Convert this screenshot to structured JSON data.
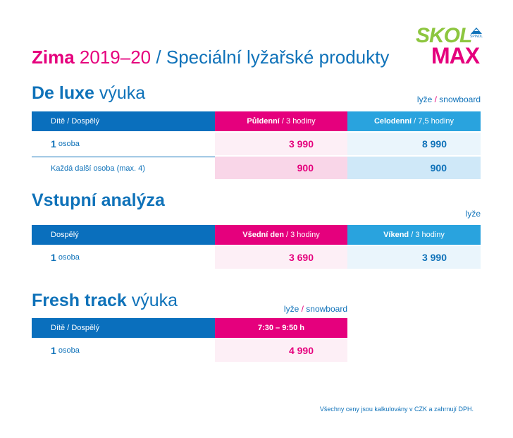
{
  "header": {
    "title_bold": "Zima",
    "title_year": "2019–20",
    "separator": "/",
    "title_rest": "Speciální lyžařské produkty"
  },
  "logo": {
    "top": "SKOL",
    "bottom": "MAX",
    "brand": "ŠPINDL"
  },
  "sections": [
    {
      "title_bold": "De luxe",
      "title_rest": "výuka",
      "sports": [
        "lyže",
        "snowboard"
      ],
      "sports_separator": "/",
      "table": {
        "header": [
          {
            "text": "Dítě / Dospělý"
          },
          {
            "bold": "Půldenní",
            "rest": "/ 3 hodiny"
          },
          {
            "bold": "Celodenní",
            "rest": "/ 7,5 hodiny"
          }
        ],
        "rows": [
          [
            {
              "bold": "1",
              "rest": "osoba"
            },
            {
              "text": "3 990"
            },
            {
              "text": "8 990"
            }
          ],
          [
            {
              "rest": "Každá další osoba (max. 4)"
            },
            {
              "text": "900"
            },
            {
              "text": "900"
            }
          ]
        ]
      }
    },
    {
      "title_bold": "Vstupní analýza",
      "sports": [
        "lyže"
      ],
      "table": {
        "header": [
          {
            "text": "Dospělý"
          },
          {
            "bold": "Všední den",
            "rest": "/ 3 hodiny"
          },
          {
            "bold": "Víkend",
            "rest": "/ 3 hodiny"
          }
        ],
        "rows": [
          [
            {
              "bold": "1",
              "rest": "osoba"
            },
            {
              "text": "3 690"
            },
            {
              "text": "3 990"
            }
          ]
        ]
      }
    },
    {
      "title_bold": "Fresh track",
      "title_rest": "výuka",
      "sports": [
        "lyže",
        "snowboard"
      ],
      "sports_separator": "/",
      "table": {
        "header": [
          {
            "text": "Dítě / Dospělý"
          },
          {
            "bold": "7:30 – 9:50 h"
          }
        ],
        "rows": [
          [
            {
              "bold": "1",
              "rest": "osoba"
            },
            {
              "text": "4 990"
            }
          ]
        ]
      }
    }
  ],
  "footer": "Všechny ceny jsou kalkulovány v CZK a zahrnují DPH."
}
